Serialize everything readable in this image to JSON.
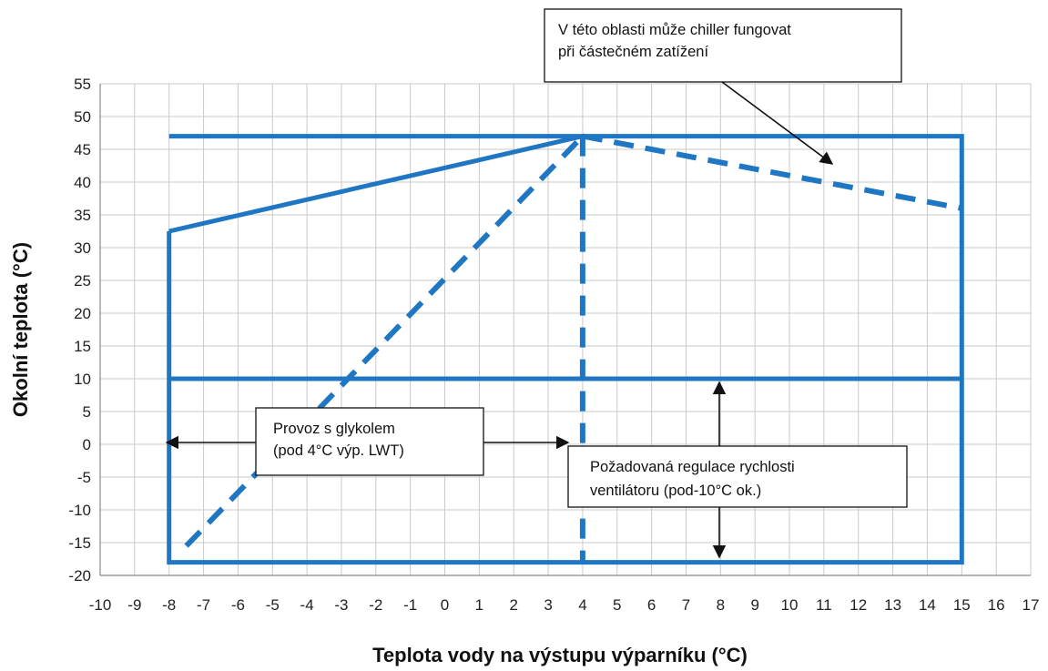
{
  "chart_data": {
    "type": "line",
    "title": "",
    "xlabel": "Teplota vody na výstupu výparníku (°C)",
    "ylabel": "Okolní teplota (°C)",
    "xlim": [
      -10,
      17
    ],
    "ylim": [
      -20,
      55
    ],
    "x_ticks": [
      -10,
      -9,
      -8,
      -7,
      -6,
      -5,
      -4,
      -3,
      -2,
      -1,
      0,
      1,
      2,
      3,
      4,
      5,
      6,
      7,
      8,
      9,
      10,
      11,
      12,
      13,
      14,
      15,
      16,
      17
    ],
    "y_ticks": [
      55,
      50,
      45,
      40,
      35,
      30,
      25,
      20,
      15,
      10,
      5,
      0,
      -5,
      -10,
      -15,
      -20
    ],
    "grid": true,
    "line_color": "#1f77c4",
    "series": [
      {
        "style": "solid",
        "x": [
          -8,
          -8,
          4,
          15,
          15,
          -8
        ],
        "y": [
          32.5,
          -18,
          -18,
          -18,
          47,
          47
        ]
      },
      {
        "style": "solid",
        "x": [
          -8,
          4
        ],
        "y": [
          32.5,
          47
        ]
      },
      {
        "style": "solid",
        "x": [
          -8,
          15
        ],
        "y": [
          10,
          10
        ]
      },
      {
        "style": "dashed",
        "x": [
          4,
          4
        ],
        "y": [
          47,
          -18
        ]
      },
      {
        "style": "dashed",
        "x": [
          -7.5,
          4
        ],
        "y": [
          -15.5,
          47
        ]
      },
      {
        "style": "dashed",
        "x": [
          4,
          15
        ],
        "y": [
          47,
          36
        ]
      }
    ],
    "annotations": [
      {
        "id": "partial-load",
        "lines": [
          "V této oblasti může chiller fungovat",
          "při částečném zatížení"
        ]
      },
      {
        "id": "glycol",
        "lines": [
          "Provoz s glykolem",
          "(pod 4°C výp. LWT)"
        ]
      },
      {
        "id": "fan-speed",
        "lines": [
          "Požadovaná  regulace  rychlosti",
          "ventilátoru (pod-10°C ok.)"
        ]
      }
    ]
  }
}
